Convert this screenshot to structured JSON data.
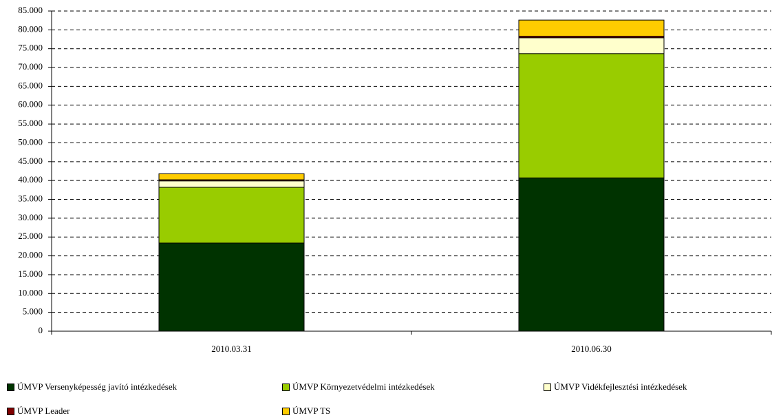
{
  "chart_data": {
    "type": "stacked_bar",
    "categories": [
      "2010.03.31",
      "2010.06.30"
    ],
    "series": [
      {
        "name": "ÚMVP Versenyképesség javító intézkedések",
        "color": "#003300",
        "values": [
          23400,
          40700
        ]
      },
      {
        "name": "ÚMVP Környezetvédelmi intézkedések",
        "color": "#99cc00",
        "values": [
          14800,
          33000
        ]
      },
      {
        "name": "ÚMVP Vidékfejlesztési intézkedések",
        "color": "#ffffcc",
        "values": [
          1700,
          4200
        ]
      },
      {
        "name": "ÚMVP Leader",
        "color": "#800000",
        "values": [
          300,
          400
        ]
      },
      {
        "name": "ÚMVP TS",
        "color": "#ffcc00",
        "values": [
          1600,
          4300
        ]
      }
    ],
    "ylim": [
      0,
      85000
    ],
    "yticks": [
      0,
      {
        "value": 5000,
        "label": "5.000"
      },
      {
        "value": 10000,
        "label": "10.000"
      },
      {
        "value": 15000,
        "label": "15.000"
      },
      {
        "value": 20000,
        "label": "20.000"
      },
      {
        "value": 25000,
        "label": "25.000"
      },
      {
        "value": 30000,
        "label": "30.000"
      },
      {
        "value": 35000,
        "label": "35.000"
      },
      {
        "value": 40000,
        "label": "40.000"
      },
      {
        "value": 45000,
        "label": "45.000"
      },
      {
        "value": 50000,
        "label": "50.000"
      },
      {
        "value": 55000,
        "label": "55.000"
      },
      {
        "value": 60000,
        "label": "60.000"
      },
      {
        "value": 65000,
        "label": "65.000"
      },
      {
        "value": 70000,
        "label": "70.000"
      },
      {
        "value": 75000,
        "label": "75.000"
      },
      {
        "value": 80000,
        "label": "80.000"
      },
      {
        "value": 85000,
        "label": "85.000"
      }
    ],
    "grid": true,
    "legend": "bottom"
  }
}
